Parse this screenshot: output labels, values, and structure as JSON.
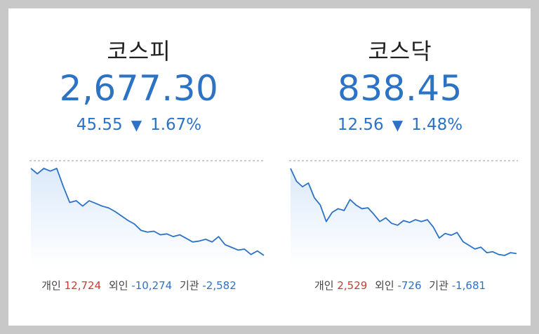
{
  "indices": [
    {
      "name": "코스피",
      "value": "2,677.30",
      "change": "45.55",
      "direction_icon": "down-triangle-icon",
      "change_pct": "1.67%",
      "flows": [
        {
          "label": "개인",
          "value": "12,724"
        },
        {
          "label": "외인",
          "value": "-10,274"
        },
        {
          "label": "기관",
          "value": "-2,582"
        }
      ],
      "chart_data": {
        "type": "area",
        "reference_line": "dashed",
        "values": [
          100,
          99.7,
          100,
          99.85,
          100,
          99.0,
          98.1,
          98.2,
          97.9,
          98.2,
          98.05,
          97.9,
          97.8,
          97.6,
          97.35,
          97.1,
          96.9,
          96.55,
          96.45,
          96.5,
          96.3,
          96.35,
          96.2,
          96.3,
          96.1,
          95.9,
          95.95,
          96.05,
          95.9,
          96.2,
          95.75,
          95.6,
          95.45,
          95.5,
          95.2,
          95.4,
          95.15
        ]
      }
    },
    {
      "name": "코스닥",
      "value": "838.45",
      "change": "12.56",
      "direction_icon": "down-triangle-icon",
      "change_pct": "1.48%",
      "flows": [
        {
          "label": "개인",
          "value": "2,529"
        },
        {
          "label": "외인",
          "value": "-726"
        },
        {
          "label": "기관",
          "value": "-1,681"
        }
      ],
      "chart_data": {
        "type": "area",
        "reference_line": "dashed",
        "values": [
          100,
          99.3,
          99.0,
          99.2,
          98.4,
          98.0,
          97.1,
          97.6,
          97.8,
          97.7,
          98.3,
          98.0,
          97.8,
          97.85,
          97.5,
          97.1,
          97.3,
          97.0,
          96.9,
          97.15,
          97.05,
          97.2,
          97.1,
          97.2,
          96.8,
          96.2,
          96.45,
          96.35,
          96.5,
          96.0,
          95.8,
          95.6,
          95.7,
          95.4,
          95.45,
          95.3,
          95.25,
          95.4,
          95.35
        ]
      }
    }
  ]
}
